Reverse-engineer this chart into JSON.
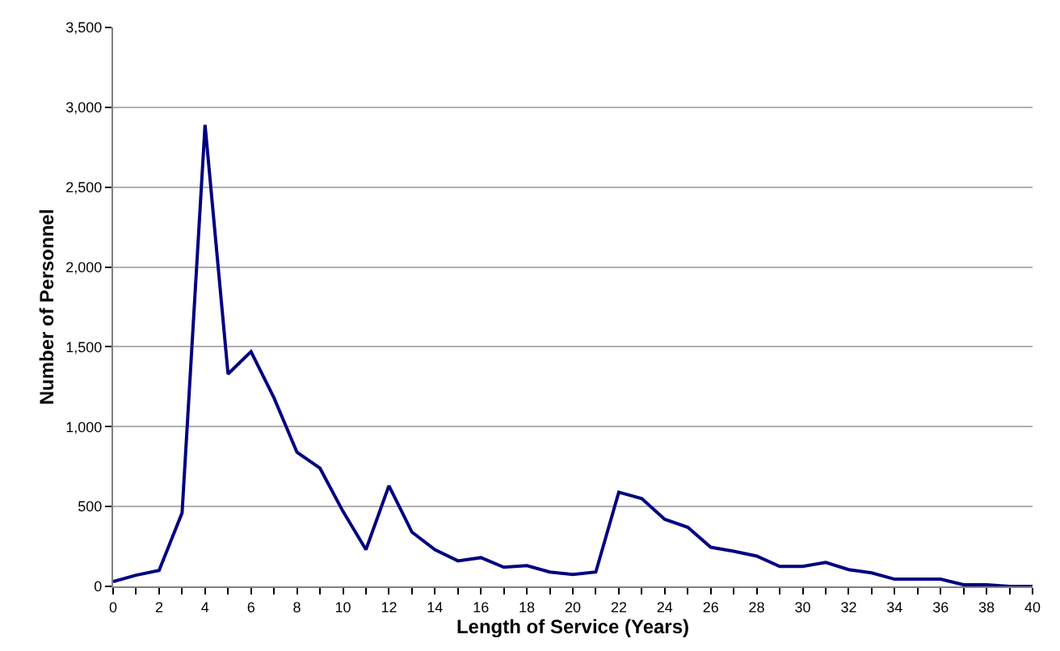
{
  "chart_data": {
    "type": "line",
    "xlabel": "Length of Service (Years)",
    "ylabel": "Number of Personnel",
    "x": [
      0,
      1,
      2,
      3,
      4,
      5,
      6,
      7,
      8,
      9,
      10,
      11,
      12,
      13,
      14,
      15,
      16,
      17,
      18,
      19,
      20,
      21,
      22,
      23,
      24,
      25,
      26,
      27,
      28,
      29,
      30,
      31,
      32,
      33,
      34,
      35,
      36,
      37,
      38,
      39,
      40
    ],
    "series": [
      {
        "color": "#000080",
        "values": [
          30,
          70,
          100,
          460,
          2890,
          1330,
          1470,
          1180,
          840,
          740,
          470,
          230,
          630,
          340,
          230,
          160,
          180,
          120,
          130,
          90,
          75,
          90,
          590,
          550,
          420,
          370,
          245,
          220,
          190,
          125,
          125,
          150,
          105,
          85,
          45,
          45,
          45,
          10,
          10,
          0,
          0
        ]
      }
    ],
    "xlim": [
      0,
      40
    ],
    "xticks": [
      0,
      {
        "value": 1,
        "label": null
      },
      2,
      {
        "value": 3,
        "label": null
      },
      4,
      {
        "value": 5,
        "label": null
      },
      6,
      {
        "value": 7,
        "label": null
      },
      8,
      {
        "value": 9,
        "label": null
      },
      10,
      {
        "value": 11,
        "label": null
      },
      12,
      {
        "value": 13,
        "label": null
      },
      14,
      {
        "value": 15,
        "label": null
      },
      16,
      {
        "value": 17,
        "label": null
      },
      18,
      {
        "value": 19,
        "label": null
      },
      20,
      {
        "value": 21,
        "label": null
      },
      22,
      {
        "value": 23,
        "label": null
      },
      24,
      {
        "value": 25,
        "label": null
      },
      26,
      {
        "value": 27,
        "label": null
      },
      28,
      {
        "value": 29,
        "label": null
      },
      30,
      {
        "value": 31,
        "label": null
      },
      32,
      {
        "value": 33,
        "label": null
      },
      34,
      {
        "value": 35,
        "label": null
      },
      36,
      {
        "value": 37,
        "label": null
      },
      38,
      {
        "value": 39,
        "label": null
      },
      40
    ],
    "ylim": [
      0,
      3500
    ],
    "yticks": [
      {
        "value": 0,
        "label": "0"
      },
      {
        "value": 500,
        "label": "500"
      },
      {
        "value": 1000,
        "label": "1,000"
      },
      {
        "value": 1500,
        "label": "1,500"
      },
      {
        "value": 2000,
        "label": "2,000"
      },
      {
        "value": 2500,
        "label": "2,500"
      },
      {
        "value": 3000,
        "label": "3,000"
      },
      {
        "value": 3500,
        "label": "3,500"
      }
    ],
    "grid": "y",
    "legend": false,
    "marker": "none",
    "line_style": "solid"
  }
}
